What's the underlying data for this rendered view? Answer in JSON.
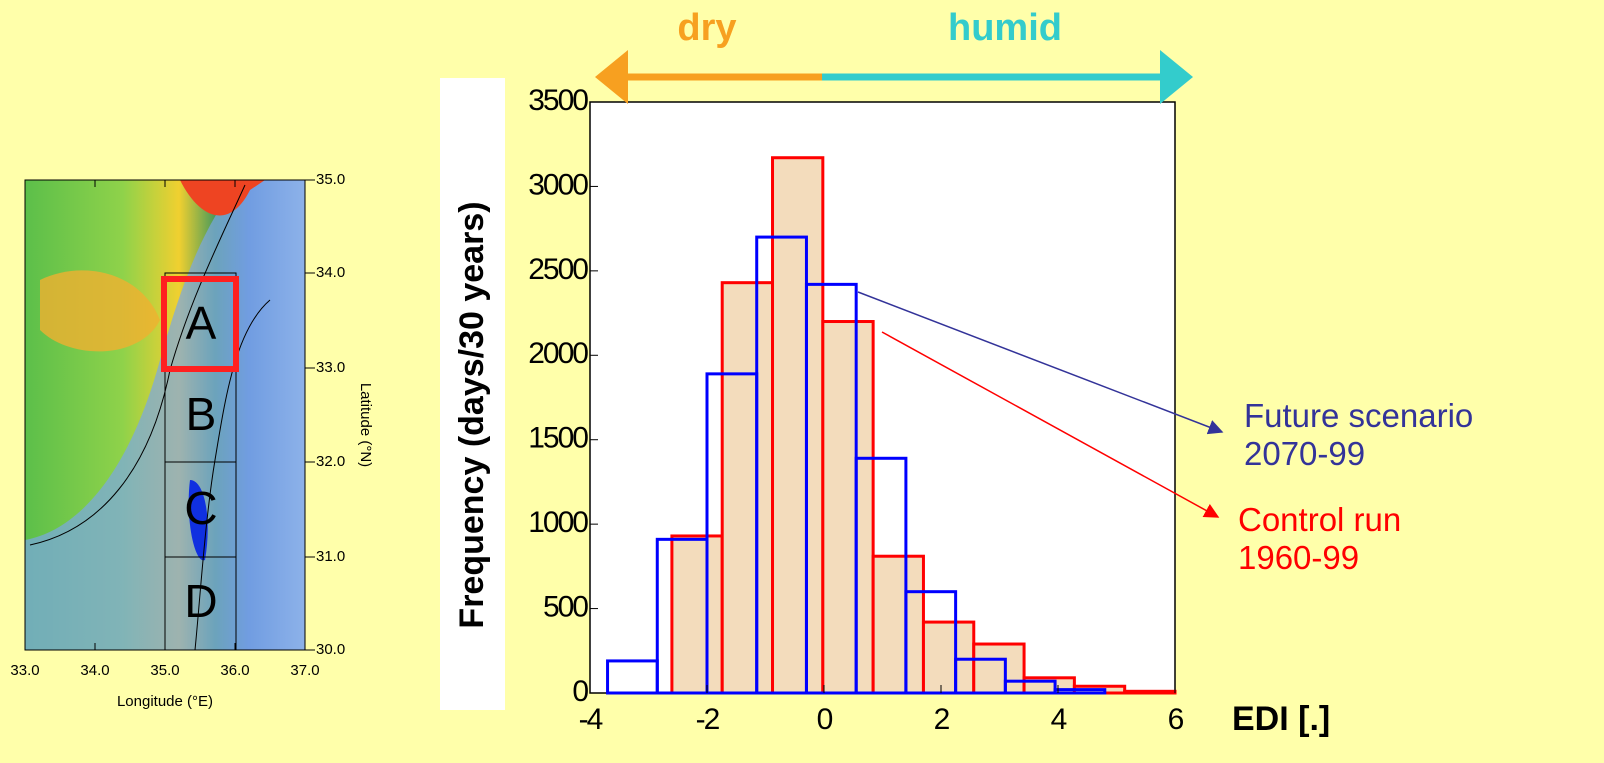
{
  "chart_data": {
    "type": "histogram",
    "x_label": "EDI [.]",
    "y_label": "Frequency (days/30 years)",
    "xlim": [
      -4,
      6
    ],
    "xticks": [
      -4,
      -2,
      0,
      2,
      4,
      6
    ],
    "ylim": [
      0,
      3500
    ],
    "yticks": [
      0,
      500,
      1000,
      1500,
      2000,
      2500,
      3000,
      3500
    ],
    "series": [
      {
        "name": "Control run 1960-99",
        "color": "#ff0000",
        "fill": "#f3dcbc",
        "bins": [
          -2.6,
          -1.74,
          -0.88,
          -0.02,
          0.84,
          1.7,
          2.56,
          3.42,
          4.28,
          5.14,
          6.0
        ],
        "values": [
          930,
          2430,
          3170,
          2200,
          810,
          420,
          290,
          90,
          40,
          10
        ]
      },
      {
        "name": "Future scenario 2070-99",
        "color": "#0000ff",
        "bins": [
          -3.7,
          -2.85,
          -2.0,
          -1.15,
          -0.3,
          0.55,
          1.4,
          2.25,
          3.1,
          3.95,
          4.8
        ],
        "values": [
          190,
          910,
          1890,
          2700,
          2420,
          1390,
          600,
          200,
          70,
          20
        ]
      }
    ],
    "annotations": [
      {
        "text": "dry",
        "color": "#f7a020"
      },
      {
        "text": "humid",
        "color": "#33cccc"
      }
    ],
    "label_colors": [
      "#ff0000",
      "#333399"
    ]
  },
  "map": {
    "x_label": "Longitude (°E)",
    "y_label": "Latitude (°N)",
    "xticks": [
      "33.0",
      "34.0",
      "35.0",
      "36.0",
      "37.0"
    ],
    "yticks": [
      "30.0",
      "31.0",
      "32.0",
      "33.0",
      "34.0",
      "35.0"
    ],
    "regions": [
      "A",
      "B",
      "C",
      "D"
    ]
  }
}
